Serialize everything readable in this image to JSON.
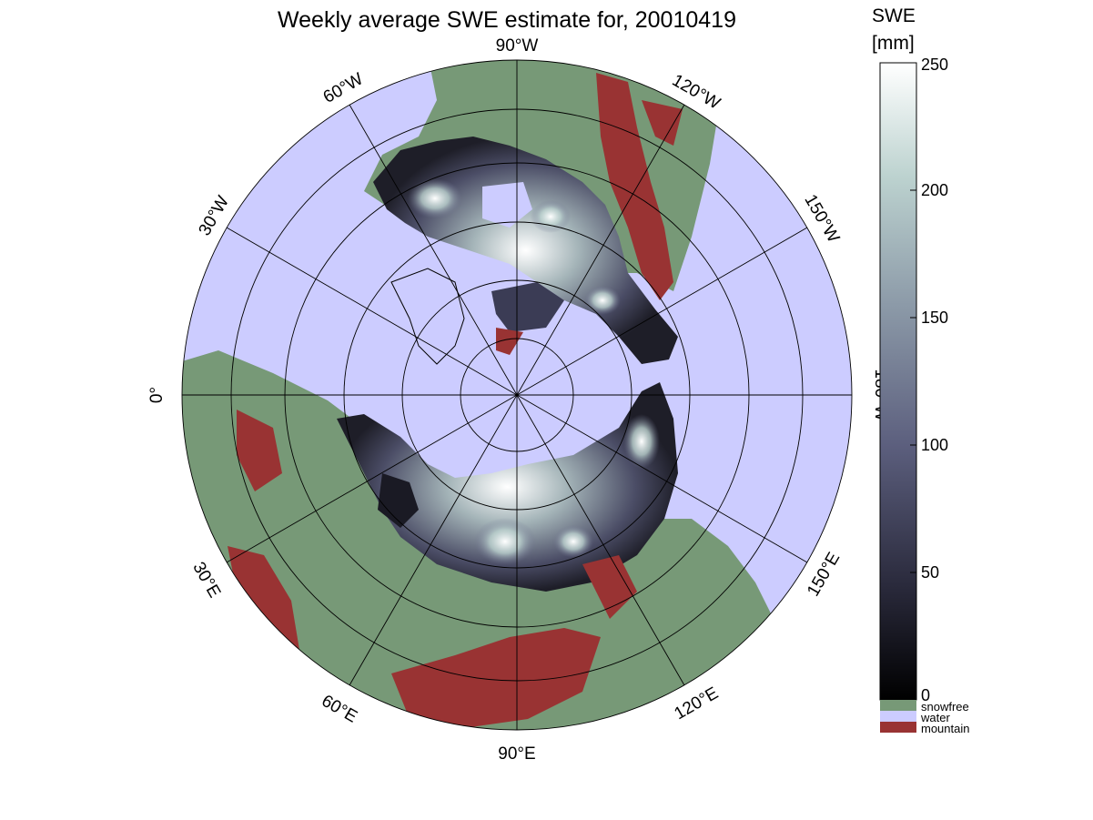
{
  "title": "Weekly average SWE estimate for, 20010419",
  "colorbar": {
    "label_line1": "SWE",
    "label_line2": "[mm]",
    "ticks": [
      "0",
      "50",
      "100",
      "150",
      "200",
      "250"
    ],
    "range": [
      0,
      250
    ]
  },
  "legend": [
    {
      "label": "snowfree",
      "color": "#779977"
    },
    {
      "label": "water",
      "color": "#ccccff"
    },
    {
      "label": "mountain",
      "color": "#993333"
    }
  ],
  "longitude_labels": {
    "lon_90w": "90°W",
    "lon_120w": "120°W",
    "lon_150w": "150°W",
    "lon_180w": "180°W",
    "lon_150e": "150°E",
    "lon_120e": "120°E",
    "lon_90e": "90°E",
    "lon_60e": "60°E",
    "lon_30e": "30°E",
    "lon_0": "0°",
    "lon_30w": "30°W",
    "lon_60w": "60°W"
  },
  "colors": {
    "water": "#ccccff",
    "snowfree": "#779977",
    "mountain": "#993333",
    "swe_low": "#000000",
    "swe_high": "#ffffff"
  }
}
